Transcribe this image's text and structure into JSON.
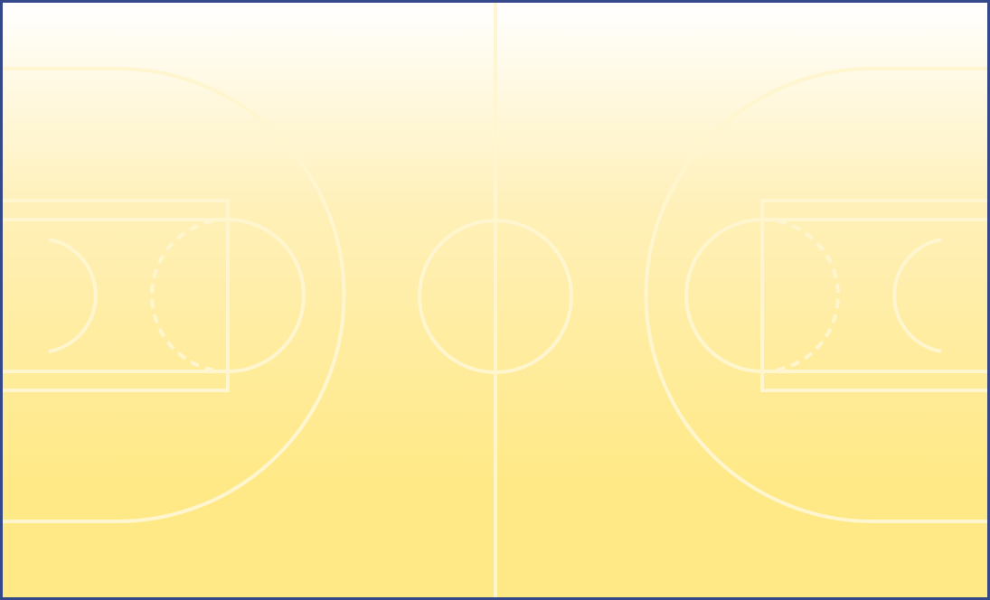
{
  "court": {
    "border_color": "#354889",
    "line_color": "#fff6cf",
    "gradient_top": "#ffffff",
    "gradient_bottom": "#ffe987"
  }
}
